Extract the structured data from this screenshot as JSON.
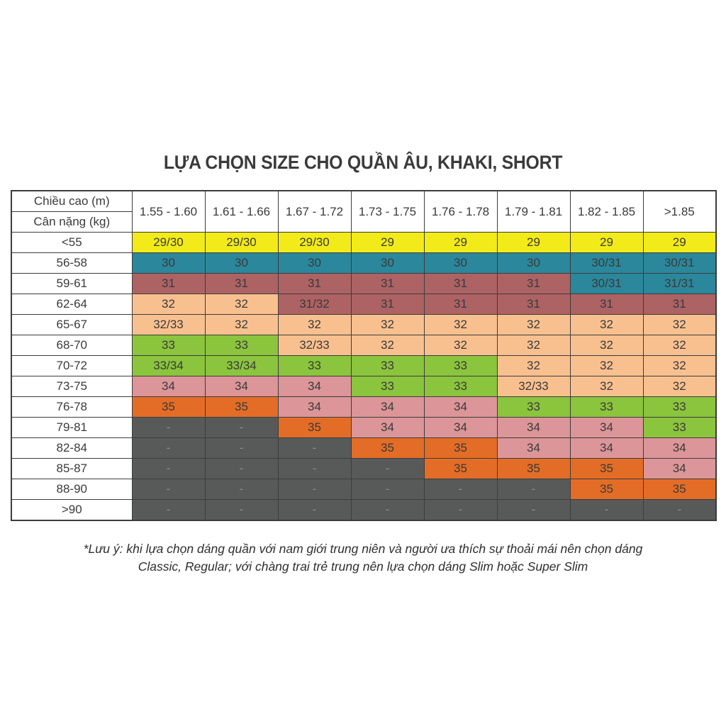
{
  "title": "LỰA CHỌN SIZE CHO QUẦN ÂU, KHAKI, SHORT",
  "table": {
    "header": {
      "height_label": "Chiều cao (m)",
      "weight_label": "Cân nặng (kg)",
      "height_ranges": [
        "1.55 - 1.60",
        "1.61 - 1.66",
        "1.67 - 1.72",
        "1.73 - 1.75",
        "1.76 - 1.78",
        "1.79 - 1.81",
        "1.82 - 1.85",
        ">1.85"
      ]
    },
    "rows": [
      {
        "weight": "<55",
        "sizes": [
          "29/30",
          "29/30",
          "29/30",
          "29",
          "29",
          "29",
          "29",
          "29"
        ],
        "colors": [
          "yellow",
          "yellow",
          "yellow",
          "yellow",
          "yellow",
          "yellow",
          "yellow",
          "yellow"
        ]
      },
      {
        "weight": "56-58",
        "sizes": [
          "30",
          "30",
          "30",
          "30",
          "30",
          "30",
          "30/31",
          "30/31"
        ],
        "colors": [
          "teal",
          "teal",
          "teal",
          "teal",
          "teal",
          "teal",
          "teal",
          "teal"
        ]
      },
      {
        "weight": "59-61",
        "sizes": [
          "31",
          "31",
          "31",
          "31",
          "31",
          "31",
          "30/31",
          "31/31"
        ],
        "colors": [
          "maroon",
          "maroon",
          "maroon",
          "maroon",
          "maroon",
          "maroon",
          "teal",
          "teal"
        ]
      },
      {
        "weight": "62-64",
        "sizes": [
          "32",
          "32",
          "31/32",
          "31",
          "31",
          "31",
          "31",
          "31"
        ],
        "colors": [
          "peach",
          "peach",
          "maroon",
          "maroon",
          "maroon",
          "maroon",
          "maroon",
          "maroon"
        ]
      },
      {
        "weight": "65-67",
        "sizes": [
          "32/33",
          "32",
          "32",
          "32",
          "32",
          "32",
          "32",
          "32"
        ],
        "colors": [
          "peach",
          "peach",
          "peach",
          "peach",
          "peach",
          "peach",
          "peach",
          "peach"
        ]
      },
      {
        "weight": "68-70",
        "sizes": [
          "33",
          "33",
          "32/33",
          "32",
          "32",
          "32",
          "32",
          "32"
        ],
        "colors": [
          "green",
          "green",
          "peach",
          "peach",
          "peach",
          "peach",
          "peach",
          "peach"
        ]
      },
      {
        "weight": "70-72",
        "sizes": [
          "33/34",
          "33/34",
          "33",
          "33",
          "33",
          "32",
          "32",
          "32"
        ],
        "colors": [
          "green",
          "green",
          "green",
          "green",
          "green",
          "peach",
          "peach",
          "peach"
        ]
      },
      {
        "weight": "73-75",
        "sizes": [
          "34",
          "34",
          "34",
          "33",
          "33",
          "32/33",
          "32",
          "32"
        ],
        "colors": [
          "pink",
          "pink",
          "pink",
          "green",
          "green",
          "peach",
          "peach",
          "peach"
        ]
      },
      {
        "weight": "76-78",
        "sizes": [
          "35",
          "35",
          "34",
          "34",
          "34",
          "33",
          "33",
          "33"
        ],
        "colors": [
          "orange",
          "orange",
          "pink",
          "pink",
          "pink",
          "green",
          "green",
          "green"
        ]
      },
      {
        "weight": "79-81",
        "sizes": [
          "-",
          "-",
          "35",
          "34",
          "34",
          "34",
          "34",
          "33"
        ],
        "colors": [
          "gray",
          "gray",
          "orange",
          "pink",
          "pink",
          "pink",
          "pink",
          "green"
        ]
      },
      {
        "weight": "82-84",
        "sizes": [
          "-",
          "-",
          "-",
          "35",
          "35",
          "34",
          "34",
          "34"
        ],
        "colors": [
          "gray",
          "gray",
          "gray",
          "orange",
          "orange",
          "pink",
          "pink",
          "pink"
        ]
      },
      {
        "weight": "85-87",
        "sizes": [
          "-",
          "-",
          "-",
          "-",
          "35",
          "35",
          "35",
          "34"
        ],
        "colors": [
          "gray",
          "gray",
          "gray",
          "gray",
          "orange",
          "orange",
          "orange",
          "pink"
        ]
      },
      {
        "weight": "88-90",
        "sizes": [
          "-",
          "-",
          "-",
          "-",
          "-",
          "-",
          "35",
          "35"
        ],
        "colors": [
          "gray",
          "gray",
          "gray",
          "gray",
          "gray",
          "gray",
          "orange",
          "orange"
        ]
      },
      {
        "weight": ">90",
        "sizes": [
          "-",
          "-",
          "-",
          "-",
          "-",
          "-",
          "-",
          "-"
        ],
        "colors": [
          "gray",
          "gray",
          "gray",
          "gray",
          "gray",
          "gray",
          "gray",
          "gray"
        ]
      }
    ]
  },
  "palette": {
    "yellow": "#f2eb19",
    "teal": "#2b879b",
    "maroon": "#ad6264",
    "peach": "#f9c08f",
    "green": "#8bc43d",
    "pink": "#dc9598",
    "orange": "#e36d26",
    "gray": "#585a5a"
  },
  "note": {
    "line1": "*Lưu ý: khi lựa chọn dáng quần với nam giới trung niên và người ưa thích sự thoải mái nên chọn dáng",
    "line2": "Classic, Regular; với chàng trai trẻ trung nên lựa chọn dáng Slim hoặc Super Slim"
  }
}
